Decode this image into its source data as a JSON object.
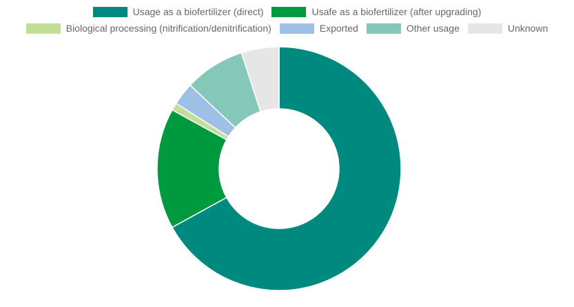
{
  "chart_data": {
    "type": "donut",
    "categories": [
      "Usage as a biofertilizer (direct)",
      "Usafe as a biofertilizer (after upgrading)",
      "Biological processing (nitrification/denitrification)",
      "Exported",
      "Other usage",
      "Unknown"
    ],
    "values": [
      67,
      16,
      1,
      3,
      8,
      5
    ],
    "colors": [
      "#00897f",
      "#009a3e",
      "#c3df96",
      "#9ec0e6",
      "#85c7b8",
      "#e6e6e6"
    ],
    "legend": "top"
  }
}
